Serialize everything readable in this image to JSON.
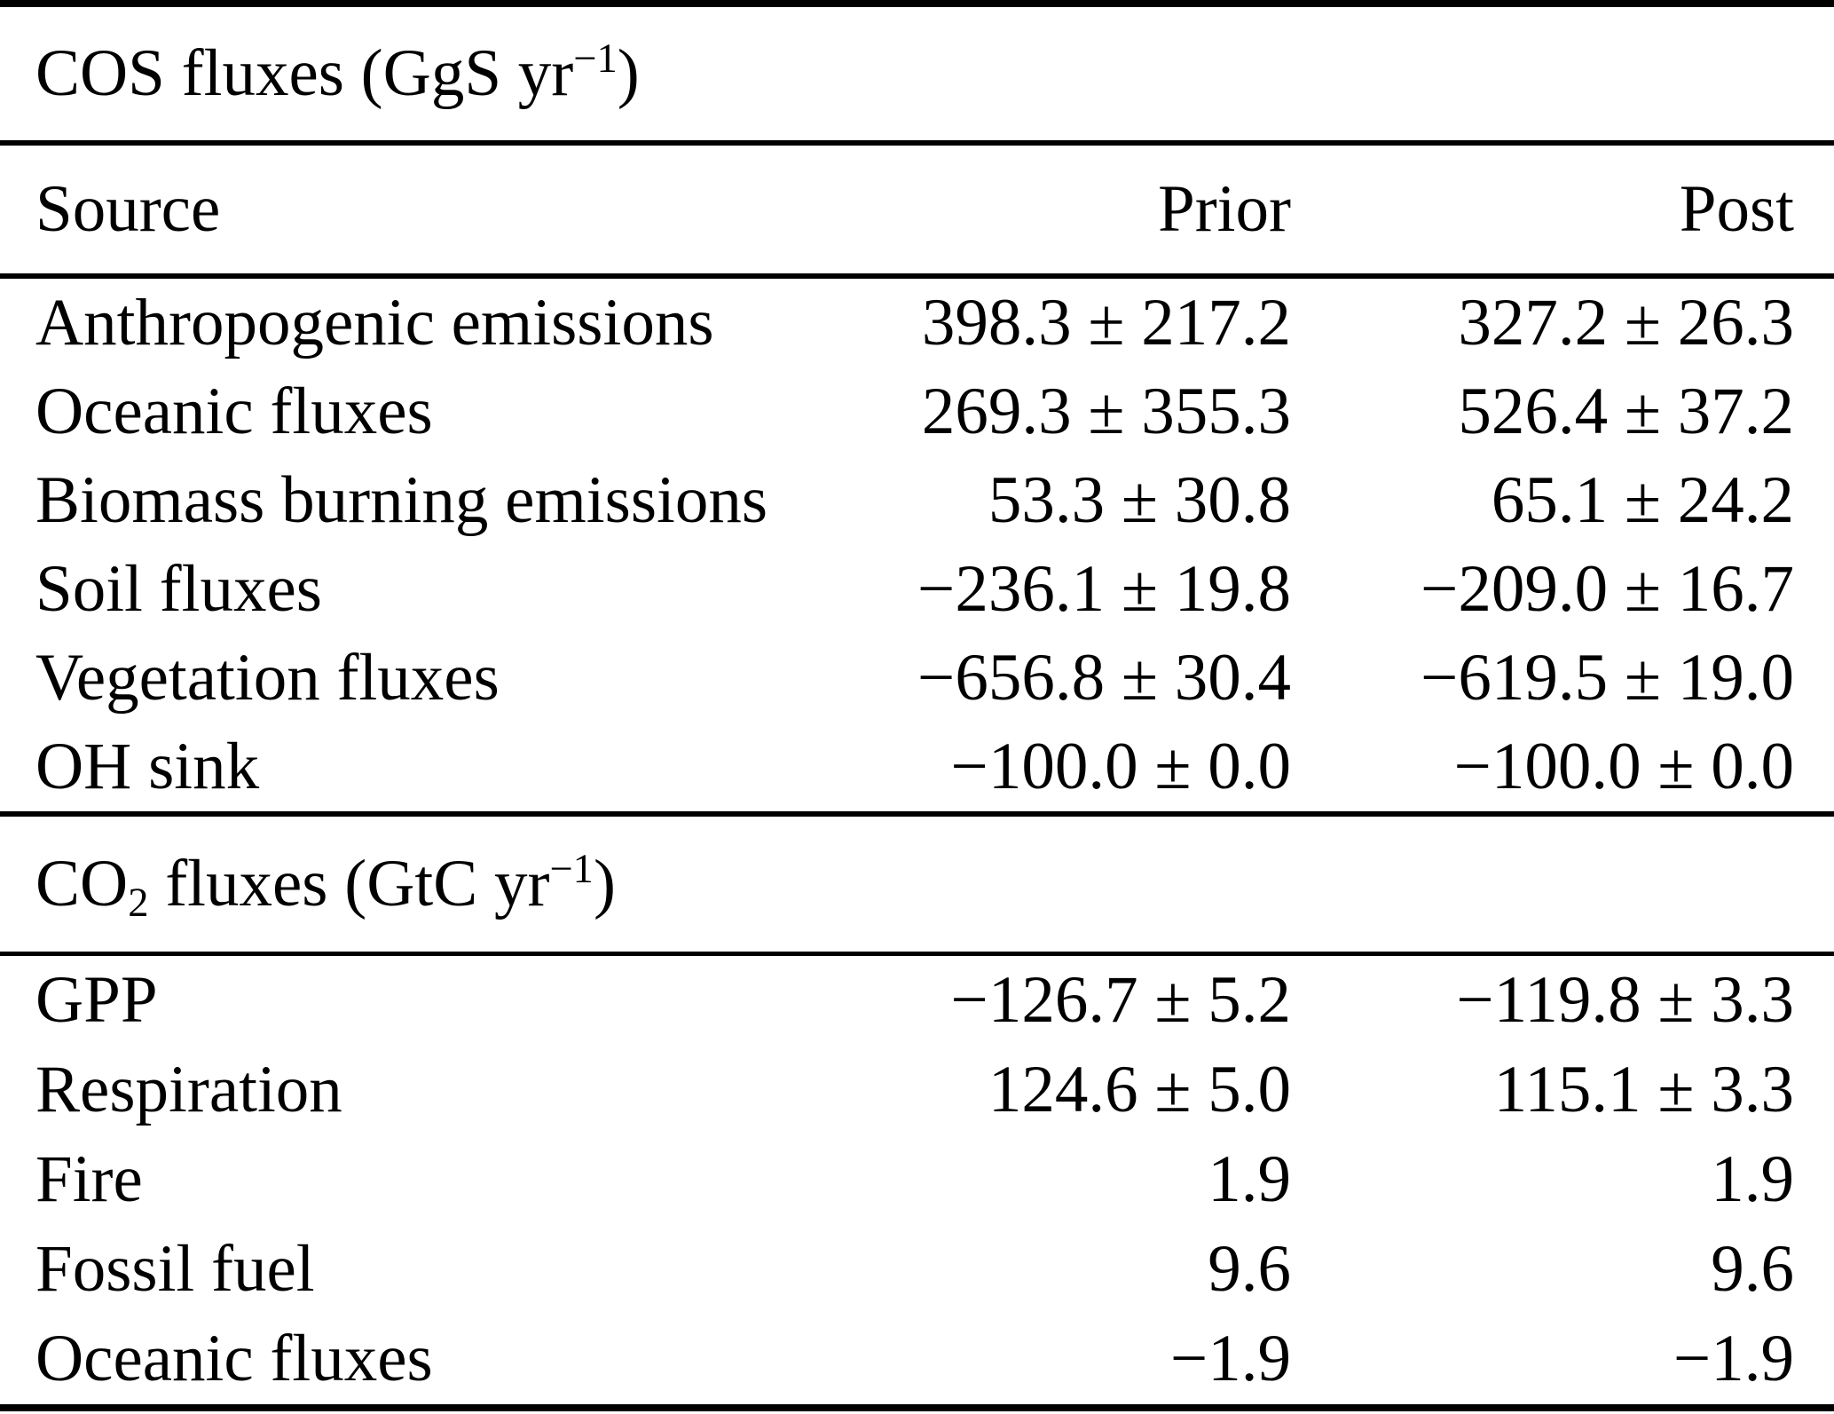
{
  "columns": {
    "source": "Source",
    "prior": "Prior",
    "post": "Post"
  },
  "cos_section": {
    "title": {
      "text": "COS fluxes (GgS yr",
      "exponent": "−1",
      "close": ")"
    },
    "rows": [
      {
        "source": "Anthropogenic emissions",
        "prior": "398.3 ± 217.2",
        "post": "327.2 ± 26.3"
      },
      {
        "source": "Oceanic fluxes",
        "prior": "269.3 ± 355.3",
        "post": "526.4 ± 37.2"
      },
      {
        "source": "Biomass burning emissions",
        "prior": "53.3 ± 30.8",
        "post": "65.1 ± 24.2"
      },
      {
        "source": "Soil fluxes",
        "prior": "−236.1 ± 19.8",
        "post": "−209.0 ± 16.7"
      },
      {
        "source": "Vegetation fluxes",
        "prior": "−656.8 ± 30.4",
        "post": "−619.5 ± 19.0"
      },
      {
        "source": "OH sink",
        "prior": "−100.0 ± 0.0",
        "post": "−100.0 ± 0.0"
      }
    ]
  },
  "co2_section": {
    "title": {
      "base": "CO",
      "subscript": "2",
      "text": " fluxes (GtC yr",
      "exponent": "−1",
      "close": ")"
    },
    "rows": [
      {
        "source": "GPP",
        "prior": "−126.7 ± 5.2",
        "post": "−119.8 ± 3.3"
      },
      {
        "source": "Respiration",
        "prior": "124.6 ± 5.0",
        "post": "115.1 ± 3.3"
      },
      {
        "source": "Fire",
        "prior": "1.9",
        "post": "1.9"
      },
      {
        "source": "Fossil fuel",
        "prior": "9.6",
        "post": "9.6"
      },
      {
        "source": "Oceanic fluxes",
        "prior": "−1.9",
        "post": "−1.9"
      }
    ]
  }
}
